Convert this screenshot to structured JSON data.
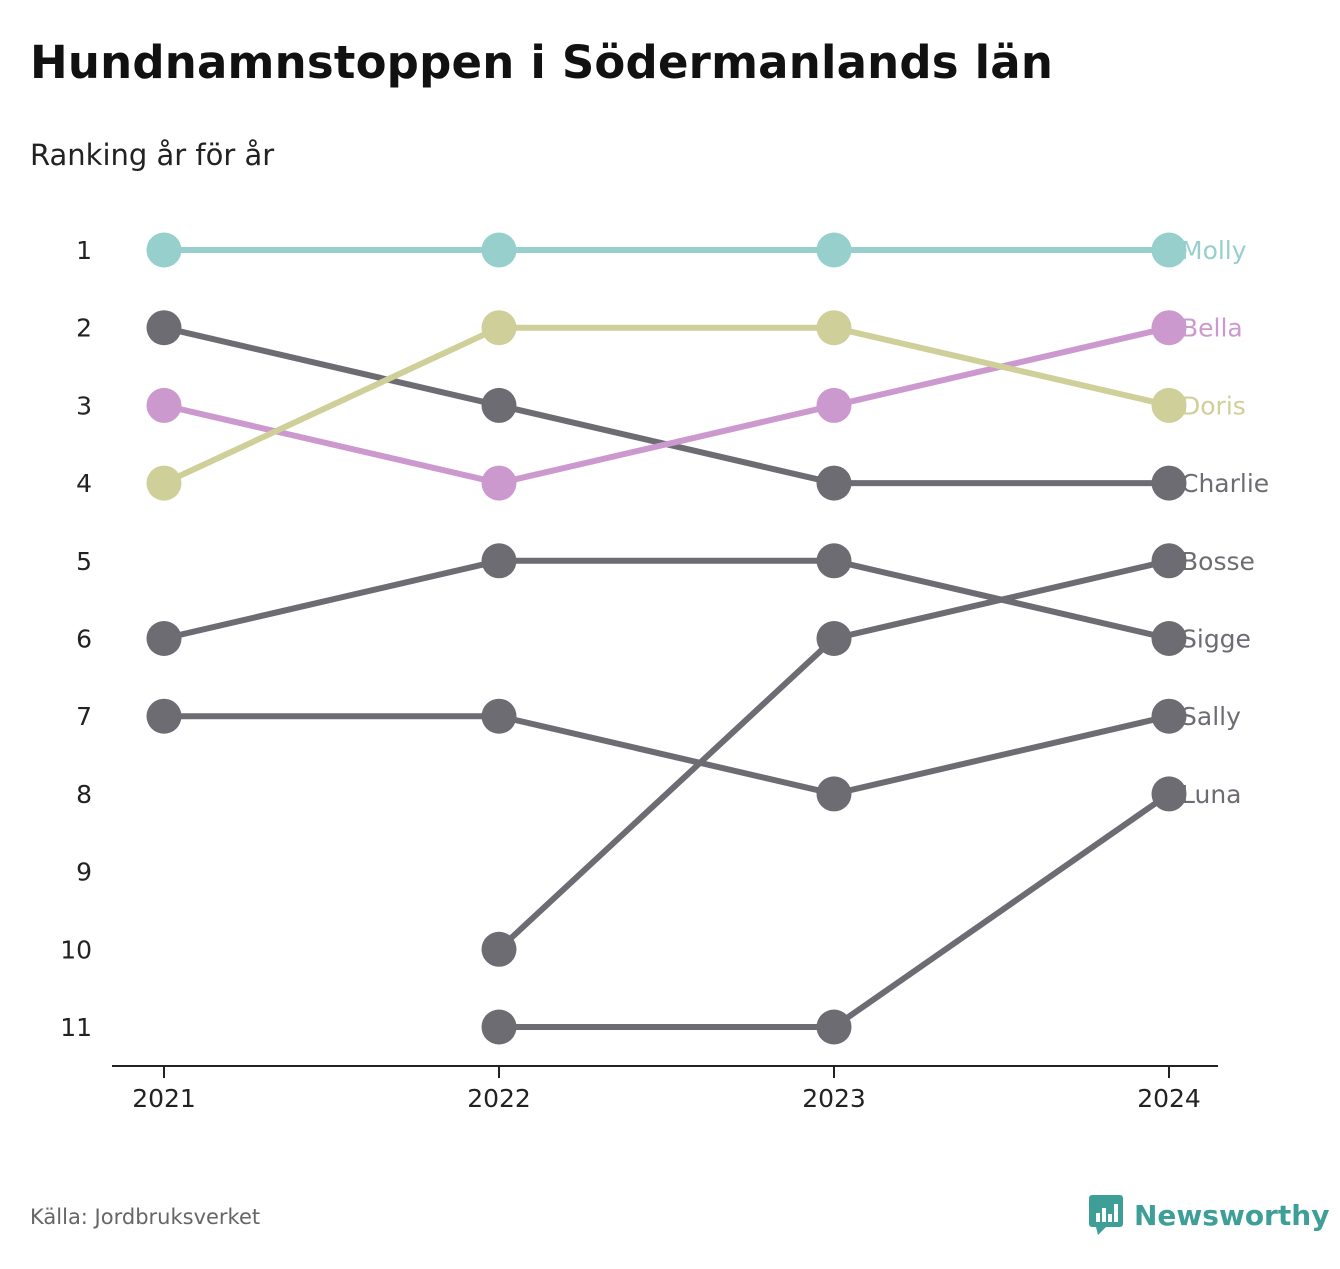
{
  "title": "Hundnamnstoppen i Södermanlands län",
  "subtitle": "Ranking år för år",
  "source": "Källa: Jordbruksverket",
  "brand": {
    "name": "Newsworthy",
    "icon": "newsworthy-logo-icon",
    "color": "#3e9e98"
  },
  "chart_data": {
    "type": "line",
    "title": "Hundnamnstoppen i Södermanlands län",
    "subtitle": "Ranking år för år",
    "x": [
      "2021",
      "2022",
      "2023",
      "2024"
    ],
    "y_ticks": [
      1,
      2,
      3,
      4,
      5,
      6,
      7,
      8,
      9,
      10,
      11
    ],
    "y_inverted": true,
    "ylim": [
      1,
      11
    ],
    "grid": false,
    "legend": "end-labels",
    "series": [
      {
        "name": "Molly",
        "values": [
          1,
          1,
          1,
          1
        ],
        "color": "#96cfcc"
      },
      {
        "name": "Bella",
        "values": [
          3,
          4,
          3,
          2
        ],
        "color": "#cc99cf"
      },
      {
        "name": "Doris",
        "values": [
          4,
          2,
          2,
          3
        ],
        "color": "#cfcf99"
      },
      {
        "name": "Charlie",
        "values": [
          2,
          3,
          4,
          4
        ],
        "color": "#6d6c73"
      },
      {
        "name": "Bosse",
        "values": [
          null,
          10,
          6,
          5
        ],
        "color": "#6d6c73"
      },
      {
        "name": "Sigge",
        "values": [
          6,
          5,
          5,
          6
        ],
        "color": "#6d6c73"
      },
      {
        "name": "Sally",
        "values": [
          7,
          7,
          8,
          7
        ],
        "color": "#6d6c73"
      },
      {
        "name": "Luna",
        "values": [
          null,
          11,
          11,
          8
        ],
        "color": "#6d6c73"
      }
    ]
  }
}
